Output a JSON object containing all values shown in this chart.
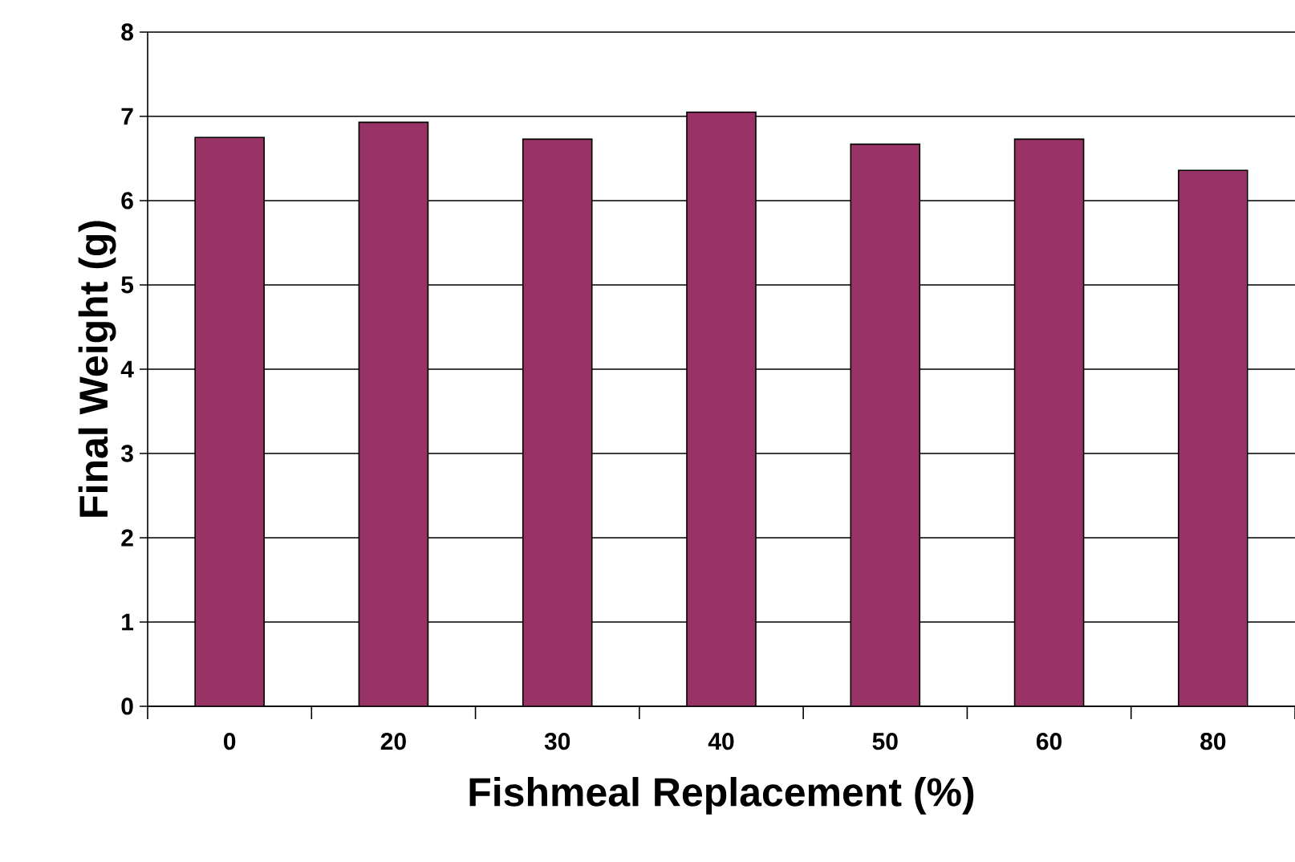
{
  "chart_data": {
    "type": "bar",
    "xlabel": "Fishmeal Replacement (%)",
    "ylabel": "Final Weight (g)",
    "categories": [
      "0",
      "20",
      "30",
      "40",
      "50",
      "60",
      "80"
    ],
    "values": [
      6.75,
      6.93,
      6.73,
      7.05,
      6.67,
      6.73,
      6.36
    ],
    "color": "#993366",
    "ylim": [
      0,
      8
    ],
    "yticks": [
      0,
      1,
      2,
      3,
      4,
      5,
      6,
      7,
      8
    ],
    "grid": "y"
  }
}
